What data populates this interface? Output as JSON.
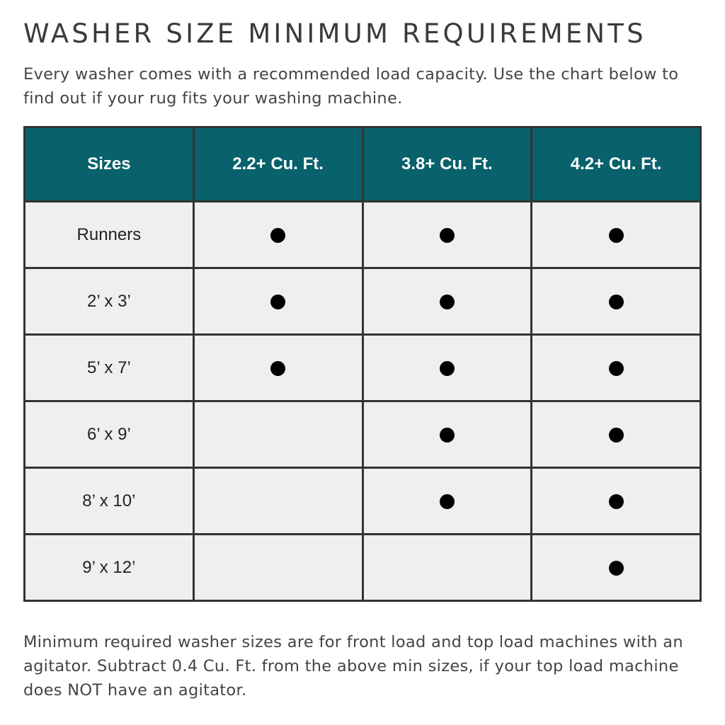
{
  "title": "WASHER SIZE MINIMUM REQUIREMENTS",
  "intro": "Every washer comes with a recommended load capacity. Use the chart below to find out if your rug fits your washing machine.",
  "table": {
    "headers": [
      "Sizes",
      "2.2+ Cu. Ft.",
      "3.8+ Cu. Ft.",
      "4.2+ Cu. Ft."
    ],
    "rows": [
      {
        "size": "Runners",
        "fits": [
          true,
          true,
          true
        ]
      },
      {
        "size": "2’ x 3’",
        "fits": [
          true,
          true,
          true
        ]
      },
      {
        "size": "5’ x 7’",
        "fits": [
          true,
          true,
          true
        ]
      },
      {
        "size": "6’ x 9’",
        "fits": [
          false,
          true,
          true
        ]
      },
      {
        "size": "8’ x 10’",
        "fits": [
          false,
          true,
          true
        ]
      },
      {
        "size": "9’ x 12’",
        "fits": [
          false,
          false,
          true
        ]
      }
    ],
    "header_color": "#08616b",
    "cell_color": "#efefef",
    "mark_icon": "filled-circle"
  },
  "footer": "Minimum required washer sizes are for front load and top load machines with an agitator. Subtract 0.4 Cu. Ft. from the above min sizes, if your top load machine does NOT have an agitator."
}
